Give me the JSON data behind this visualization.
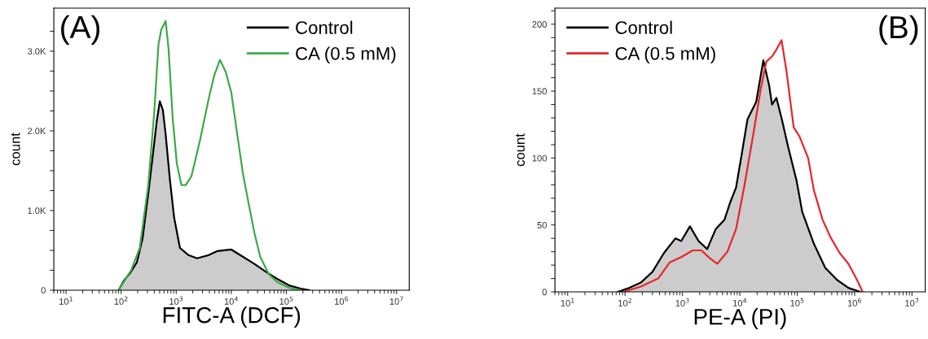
{
  "chart_data": [
    {
      "type": "area",
      "title": "(A)",
      "xlabel": "FITC-A (DCF)",
      "ylabel": "count",
      "log": "x",
      "legend": "top right",
      "xlim": [
        6,
        17000000
      ],
      "ylim": [
        0,
        3540
      ],
      "xticks": [
        {
          "value": 10,
          "label": "10$^{1}$"
        },
        {
          "value": 100,
          "label": "10$^{2}$"
        },
        {
          "value": 1000,
          "label": "10$^{3}$"
        },
        {
          "value": 10000,
          "label": "10$^{4}$"
        },
        {
          "value": 100000,
          "label": "10$^{5}$"
        },
        {
          "value": 1000000,
          "label": "10$^{6}$"
        },
        {
          "value": 10000000,
          "label": "10$^{7}$"
        }
      ],
      "yticks": [
        {
          "value": 0,
          "label": "0"
        },
        {
          "value": 250,
          "label": null
        },
        {
          "value": 500,
          "label": null
        },
        {
          "value": 750,
          "label": null
        },
        {
          "value": 1000,
          "label": "1.0K"
        },
        {
          "value": 1250,
          "label": null
        },
        {
          "value": 1500,
          "label": null
        },
        {
          "value": 1750,
          "label": null
        },
        {
          "value": 2000,
          "label": "2.0K"
        },
        {
          "value": 2250,
          "label": null
        },
        {
          "value": 2500,
          "label": null
        },
        {
          "value": 2750,
          "label": null
        },
        {
          "value": 3000,
          "label": "3.0K"
        },
        {
          "value": 3250,
          "label": null
        }
      ],
      "series": [
        {
          "name": "Control",
          "color": "#000000",
          "x": [
            90,
            112,
            144,
            193,
            245,
            311,
            398,
            447,
            504,
            573,
            642,
            767,
            917,
            1170,
            1670,
            2390,
            3880,
            5530,
            10000,
            16200,
            26300,
            42500,
            69000,
            112000,
            182000,
            260000
          ],
          "values": [
            0,
            120,
            210,
            350,
            650,
            1210,
            1840,
            2140,
            2370,
            2260,
            1960,
            1390,
            910,
            530,
            440,
            400,
            440,
            490,
            510,
            420,
            330,
            230,
            140,
            60,
            20,
            0
          ]
        },
        {
          "name": "CA (0.5 mM)",
          "type": "line",
          "color": "#3daa48",
          "x": [
            90,
            152,
            218,
            311,
            398,
            476,
            535,
            642,
            724,
            867,
            1030,
            1240,
            1490,
            1890,
            2700,
            3880,
            4920,
            6240,
            7930,
            10000,
            12800,
            16200,
            20600,
            26300,
            33500,
            47900,
            69000,
            112000,
            182000
          ],
          "values": [
            0,
            250,
            530,
            1320,
            2220,
            3080,
            3270,
            3380,
            3040,
            2140,
            1580,
            1320,
            1320,
            1430,
            1880,
            2400,
            2700,
            2890,
            2740,
            2480,
            1960,
            1470,
            1090,
            720,
            420,
            200,
            100,
            30,
            0
          ]
        }
      ]
    },
    {
      "type": "area",
      "title": "(B)",
      "xlabel": "PE-A (PI)",
      "ylabel": "count",
      "log": "x",
      "legend": "top left",
      "xlim": [
        6,
        17000000
      ],
      "ylim": [
        0,
        212
      ],
      "xticks": [
        {
          "value": 10,
          "label": "10$^{1}$"
        },
        {
          "value": 100,
          "label": "10$^{2}$"
        },
        {
          "value": 1000,
          "label": "10$^{3}$"
        },
        {
          "value": 10000,
          "label": "10$^{4}$"
        },
        {
          "value": 100000,
          "label": "10$^{5}$"
        },
        {
          "value": 1000000,
          "label": "10$^{6}$"
        },
        {
          "value": 10000000,
          "label": "10$^{7}$"
        }
      ],
      "yticks": [
        0,
        {
          "value": 10,
          "label": null
        },
        {
          "value": 20,
          "label": null
        },
        {
          "value": 30,
          "label": null
        },
        {
          "value": 40,
          "label": null
        },
        50,
        {
          "value": 60,
          "label": null
        },
        {
          "value": 70,
          "label": null
        },
        {
          "value": 80,
          "label": null
        },
        {
          "value": 90,
          "label": null
        },
        100,
        {
          "value": 110,
          "label": null
        },
        {
          "value": 120,
          "label": null
        },
        {
          "value": 130,
          "label": null
        },
        {
          "value": 140,
          "label": null
        },
        150,
        {
          "value": 160,
          "label": null
        },
        {
          "value": 170,
          "label": null
        },
        {
          "value": 180,
          "label": null
        },
        {
          "value": 190,
          "label": null
        },
        200,
        {
          "value": 210,
          "label": null
        }
      ],
      "series": [
        {
          "name": "Control",
          "color": "#000000",
          "x": [
            75,
            119,
            189,
            300,
            476,
            757,
            953,
            1350,
            1910,
            2700,
            3810,
            5400,
            6810,
            8600,
            10800,
            13600,
            19300,
            25700,
            32500,
            36400,
            43400,
            54600,
            68800,
            97500,
            122000,
            195000,
            308000,
            493000,
            780000,
            1240000
          ],
          "values": [
            0,
            3,
            7,
            15,
            29,
            40,
            38,
            49,
            38,
            32,
            47,
            54,
            67,
            78,
            103,
            129,
            142,
            173,
            154,
            140,
            145,
            128,
            109,
            83,
            60,
            36,
            18,
            9,
            3,
            0
          ]
        },
        {
          "name": "CA (0.5 mM)",
          "type": "line",
          "color": "#e8262a",
          "x": [
            94,
            189,
            378,
            600,
            953,
            1510,
            2140,
            3020,
            4040,
            6070,
            8600,
            12100,
            17200,
            22800,
            28900,
            36400,
            43400,
            53300,
            65000,
            86800,
            110000,
            155000,
            195000,
            276000,
            389000,
            550000,
            780000,
            1100000,
            1380000
          ],
          "values": [
            0,
            4,
            10,
            22,
            26,
            31,
            31,
            25,
            21,
            30,
            47,
            80,
            118,
            150,
            172,
            176,
            181,
            188,
            165,
            123,
            116,
            100,
            76,
            54,
            40,
            29,
            21,
            9,
            0
          ]
        }
      ]
    }
  ]
}
